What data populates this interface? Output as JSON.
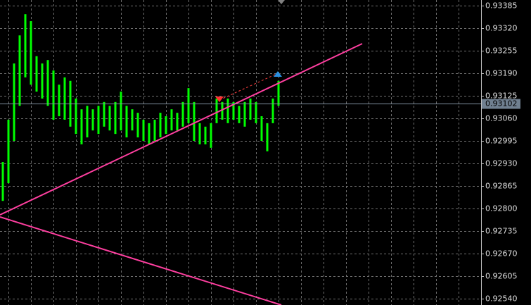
{
  "chart_data": {
    "type": "ohlc",
    "color": "#00ff00",
    "highs": [
      0.92934,
      0.93056,
      0.93218,
      0.93299,
      0.9336,
      0.9334,
      0.93239,
      0.93218,
      0.93228,
      0.93198,
      0.93157,
      0.93178,
      0.93168,
      0.93117,
      0.93086,
      0.93096,
      0.93086,
      0.93096,
      0.93107,
      0.93096,
      0.93107,
      0.93137,
      0.93096,
      0.93086,
      0.93076,
      0.93056,
      0.93046,
      0.93056,
      0.93076,
      0.93066,
      0.93086,
      0.93076,
      0.93107,
      0.93147,
      0.93107,
      0.93046,
      0.93036,
      0.93046,
      0.93117,
      0.93107,
      0.93117,
      0.93107,
      0.93096,
      0.93107,
      0.93117,
      0.93107,
      0.93066,
      0.93046,
      0.93117,
      0.93168
    ],
    "lows": [
      0.92822,
      0.92873,
      0.92995,
      0.93096,
      0.93178,
      0.93157,
      0.93137,
      0.93117,
      0.93096,
      0.93056,
      0.93066,
      0.93056,
      0.93036,
      0.93015,
      0.92985,
      0.93005,
      0.93025,
      0.93015,
      0.93036,
      0.93025,
      0.93015,
      0.93025,
      0.93005,
      0.93025,
      0.93005,
      0.92995,
      0.92985,
      0.92995,
      0.93005,
      0.93015,
      0.93025,
      0.93025,
      0.93036,
      0.93046,
      0.92995,
      0.92985,
      0.92985,
      0.92975,
      0.93046,
      0.93056,
      0.93046,
      0.93056,
      0.93046,
      0.93036,
      0.93056,
      0.93046,
      0.92995,
      0.92965,
      0.93046,
      0.93096
    ],
    "ylim": [
      0.92522,
      0.93401
    ],
    "yticks": [
      0.93385,
      {
        "value": 0.9332,
        "label": "0.93320"
      },
      0.93255,
      {
        "value": 0.9319,
        "label": "0.93190"
      },
      0.93125,
      {
        "value": 0.9306,
        "label": "0.93060"
      },
      0.92995,
      {
        "value": 0.9293,
        "label": "0.92930"
      },
      0.92865,
      {
        "value": 0.928,
        "label": "0.92800"
      },
      0.92735,
      {
        "value": 0.9267,
        "label": "0.92670"
      },
      0.92605,
      {
        "value": 0.9254,
        "label": "0.92540"
      }
    ],
    "current_price": 0.93102,
    "grid": true
  }
}
